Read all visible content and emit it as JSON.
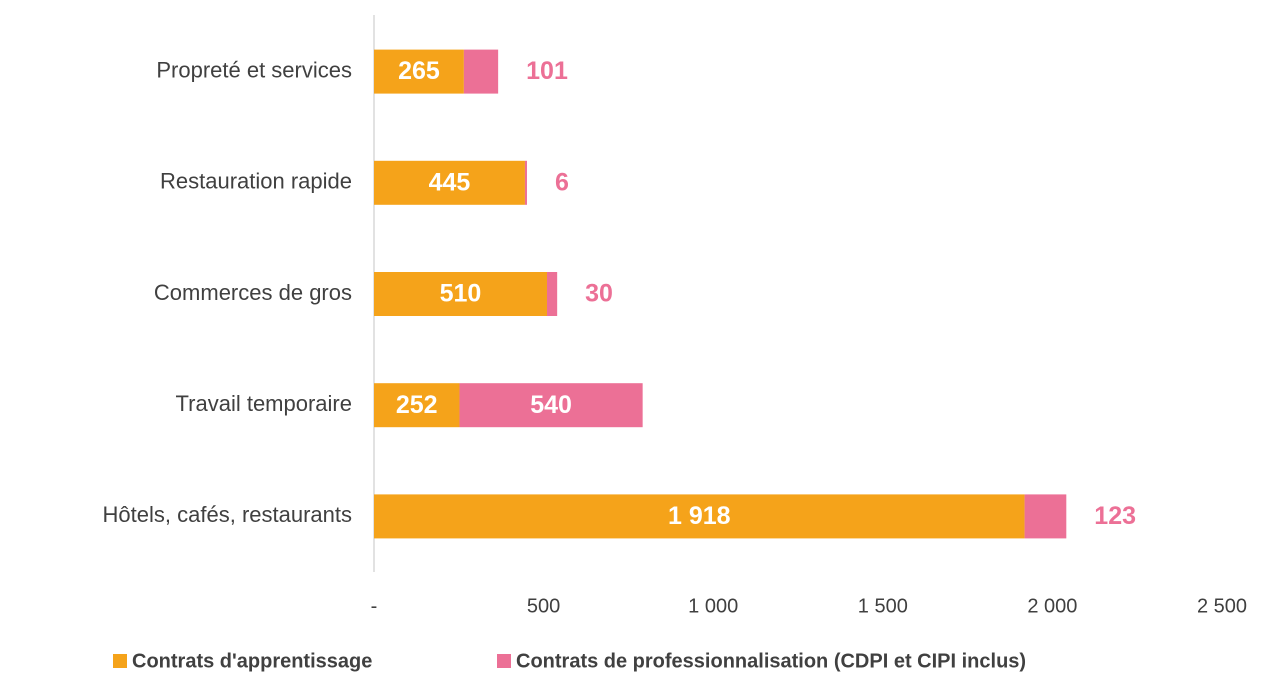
{
  "chart_data": {
    "type": "stacked-barh",
    "categories": [
      "Propreté et services",
      "Restauration rapide",
      "Commerces de gros",
      "Travail temporaire",
      "Hôtels, cafés, restaurants"
    ],
    "series": [
      {
        "name": "Contrats d'apprentissage",
        "color": "#f5a31a",
        "values": [
          265,
          445,
          510,
          252,
          1918
        ],
        "value_labels": [
          "265",
          "445",
          "510",
          "252",
          "1 918"
        ]
      },
      {
        "name": "Contrats de professionnalisation (CDPI et CIPI inclus)",
        "color": "#ec7096",
        "values": [
          101,
          6,
          30,
          540,
          123
        ]
      }
    ],
    "xlim": [
      0,
      2500
    ],
    "xticks": [
      {
        "value": 0,
        "label": "-"
      },
      500,
      {
        "value": 1000,
        "label": "1 000"
      },
      {
        "value": 1500,
        "label": "1 500"
      },
      {
        "value": 2000,
        "label": "2 000"
      },
      {
        "value": 2500,
        "label": "2 500"
      }
    ],
    "legend": "bottom"
  }
}
